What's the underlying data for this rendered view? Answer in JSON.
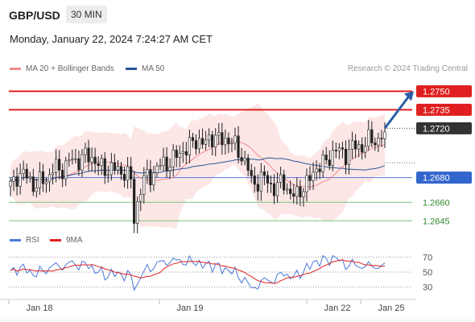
{
  "header": {
    "pair": "GBP/USD",
    "timeframe": "30 MIN"
  },
  "datetime": "Monday, January 22, 2024 7:24:27 AM CET",
  "legend": {
    "ma": {
      "label": "MA 20 + Bollinger Bands",
      "color": "#f08c8c"
    },
    "ma50": {
      "label": "MA 50",
      "color": "#2a5599"
    }
  },
  "copyright": "Research © 2024 Trading Central",
  "rsi_legend": {
    "rsi": {
      "label": "RSI",
      "color": "#4a78d8"
    },
    "ma9": {
      "label": "9MA",
      "color": "#e02020"
    }
  },
  "chart_data": [
    {
      "type": "candlestick",
      "title": "GBP/USD 30 MIN",
      "ylim": [
        1.2638,
        1.2762
      ],
      "x_ticks": [
        "Jan 18",
        "Jan 19",
        "Jan 22",
        "Jan 25"
      ],
      "levels": [
        {
          "value": 1.275,
          "label": "1.2750",
          "kind": "resistance",
          "color": "#e02020"
        },
        {
          "value": 1.2735,
          "label": "1.2735",
          "kind": "resistance",
          "color": "#e02020"
        },
        {
          "value": 1.272,
          "label": "1.2720",
          "kind": "last",
          "color": "#333333"
        },
        {
          "value": 1.268,
          "label": "1.2680",
          "kind": "pivot",
          "color": "#3366cc"
        },
        {
          "value": 1.266,
          "label": "1.2660",
          "kind": "support",
          "color": "#2e8b2e"
        },
        {
          "value": 1.2645,
          "label": "1.2645",
          "kind": "support",
          "color": "#2e8b2e"
        }
      ],
      "target_arrow": {
        "from": 1.272,
        "to": 1.275,
        "color": "#2a5fa8"
      },
      "last_price": 1.272,
      "series": [
        {
          "name": "MA 20 + Bollinger Bands"
        },
        {
          "name": "MA 50"
        }
      ]
    },
    {
      "type": "line",
      "title": "RSI",
      "ylim": [
        20,
        80
      ],
      "y_ticks": [
        70,
        50,
        30
      ],
      "series": [
        {
          "name": "RSI"
        },
        {
          "name": "9MA"
        }
      ]
    }
  ]
}
